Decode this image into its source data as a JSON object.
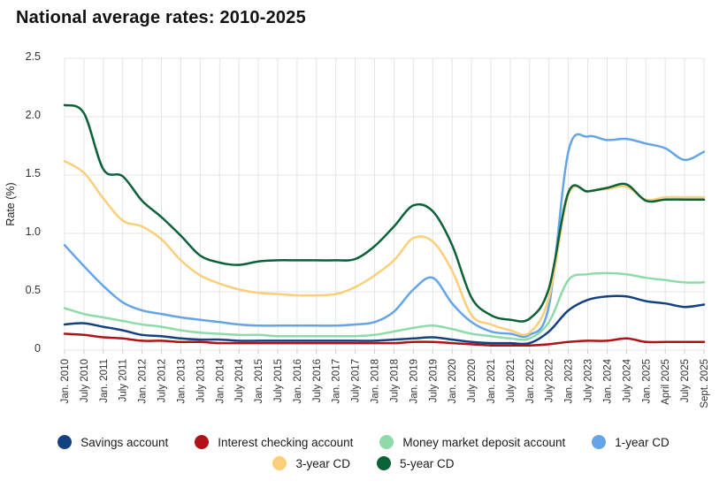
{
  "title": "National average rates: 2010-2025",
  "chart_data": {
    "type": "line",
    "title": "National average rates: 2010-2025",
    "xlabel": "",
    "ylabel": "Rate (%)",
    "ylim": [
      0,
      2.5
    ],
    "y_ticks": [
      0,
      0.5,
      1.0,
      1.5,
      2.0,
      2.5
    ],
    "y_tick_labels": [
      "0",
      "0.5",
      "1.0",
      "1.5",
      "2.0",
      "2.5"
    ],
    "grid": true,
    "legend_position": "bottom",
    "categories": [
      "Jan. 2010",
      "July 2010",
      "Jan. 2011",
      "July 2011",
      "Jan. 2012",
      "July 2012",
      "Jan. 2013",
      "July 2013",
      "Jan. 2014",
      "July 2014",
      "Jan. 2015",
      "July 2015",
      "Jan. 2016",
      "July 2016",
      "Jan. 2017",
      "July 2017",
      "Jan. 2018",
      "July 2018",
      "Jan. 2019",
      "July 2019",
      "Jan. 2020",
      "July 2020",
      "Jan. 2021",
      "July 2021",
      "Jan. 2022",
      "July 2022",
      "Jan. 2023",
      "July 2023",
      "Jan. 2024",
      "July 2024",
      "Jan. 2025",
      "April 2025",
      "July 2025",
      "Sept. 2025"
    ],
    "series": [
      {
        "name": "Savings account",
        "color": "#14417f",
        "values": [
          0.22,
          0.23,
          0.2,
          0.17,
          0.13,
          0.12,
          0.1,
          0.09,
          0.09,
          0.08,
          0.08,
          0.08,
          0.08,
          0.08,
          0.08,
          0.08,
          0.08,
          0.09,
          0.1,
          0.11,
          0.09,
          0.07,
          0.06,
          0.06,
          0.06,
          0.16,
          0.34,
          0.43,
          0.46,
          0.46,
          0.42,
          0.4,
          0.37,
          0.39
        ]
      },
      {
        "name": "Interest checking account",
        "color": "#b11217",
        "values": [
          0.14,
          0.13,
          0.11,
          0.1,
          0.08,
          0.08,
          0.07,
          0.07,
          0.06,
          0.06,
          0.06,
          0.06,
          0.06,
          0.06,
          0.06,
          0.06,
          0.06,
          0.06,
          0.07,
          0.07,
          0.06,
          0.05,
          0.04,
          0.04,
          0.04,
          0.05,
          0.07,
          0.08,
          0.08,
          0.1,
          0.07,
          0.07,
          0.07,
          0.07
        ]
      },
      {
        "name": "Money market deposit account",
        "color": "#8edbaa",
        "values": [
          0.36,
          0.31,
          0.28,
          0.25,
          0.22,
          0.2,
          0.17,
          0.15,
          0.14,
          0.13,
          0.13,
          0.12,
          0.12,
          0.12,
          0.12,
          0.12,
          0.13,
          0.16,
          0.19,
          0.21,
          0.18,
          0.14,
          0.12,
          0.1,
          0.1,
          0.24,
          0.6,
          0.65,
          0.66,
          0.65,
          0.62,
          0.6,
          0.58,
          0.58
        ]
      },
      {
        "name": "1-year CD",
        "color": "#64a4e8",
        "values": [
          0.9,
          0.72,
          0.55,
          0.41,
          0.34,
          0.31,
          0.28,
          0.26,
          0.24,
          0.22,
          0.21,
          0.21,
          0.21,
          0.21,
          0.21,
          0.22,
          0.24,
          0.33,
          0.52,
          0.62,
          0.4,
          0.24,
          0.16,
          0.14,
          0.13,
          0.38,
          1.7,
          1.83,
          1.8,
          1.81,
          1.77,
          1.73,
          1.63,
          1.7
        ]
      },
      {
        "name": "3-year CD",
        "color": "#fbcf7a",
        "values": [
          1.62,
          1.52,
          1.3,
          1.11,
          1.06,
          0.95,
          0.77,
          0.64,
          0.57,
          0.52,
          0.49,
          0.48,
          0.47,
          0.47,
          0.48,
          0.54,
          0.64,
          0.77,
          0.96,
          0.93,
          0.68,
          0.3,
          0.22,
          0.17,
          0.15,
          0.45,
          1.33,
          1.36,
          1.38,
          1.4,
          1.29,
          1.31,
          1.31,
          1.31
        ]
      },
      {
        "name": "5-year CD",
        "color": "#0b6138",
        "values": [
          2.1,
          2.03,
          1.55,
          1.49,
          1.28,
          1.14,
          0.98,
          0.81,
          0.75,
          0.73,
          0.76,
          0.77,
          0.77,
          0.77,
          0.77,
          0.78,
          0.89,
          1.06,
          1.24,
          1.19,
          0.9,
          0.45,
          0.3,
          0.26,
          0.27,
          0.53,
          1.35,
          1.36,
          1.39,
          1.42,
          1.28,
          1.29,
          1.29,
          1.29
        ]
      }
    ]
  },
  "legend": {
    "rows": [
      [
        0,
        1,
        2,
        3
      ],
      [
        4,
        5
      ]
    ]
  },
  "style": {
    "grid_color": "#e4e4e4",
    "axis_tick_color": "#c9c9c9",
    "axis_text_color": "#333333"
  }
}
